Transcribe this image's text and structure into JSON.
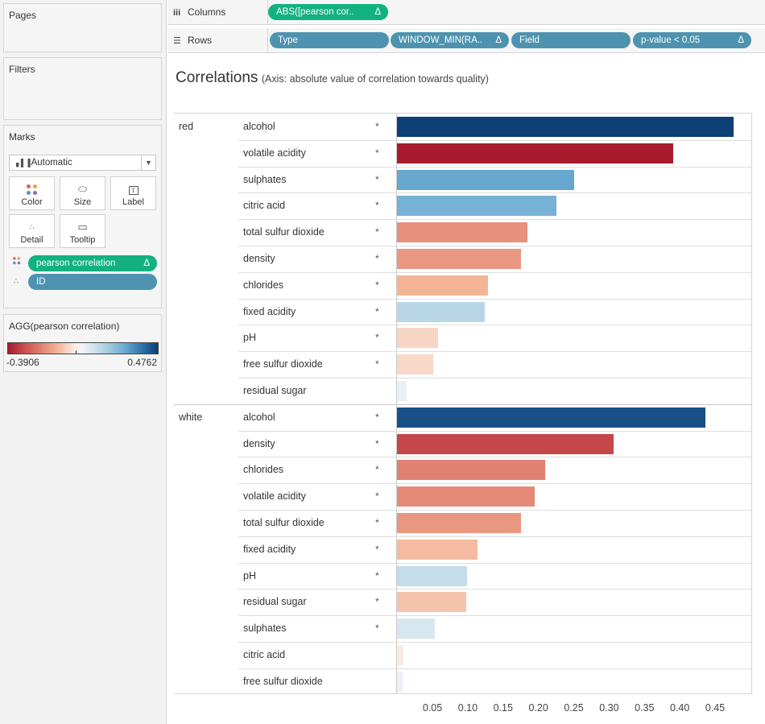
{
  "left_pane": {
    "pages_title": "Pages",
    "filters_title": "Filters",
    "marks": {
      "title": "Marks",
      "mark_type": "Automatic",
      "buttons": {
        "color": "Color",
        "size": "Size",
        "label": "Label",
        "detail": "Detail",
        "tooltip": "Tooltip"
      },
      "pills": [
        {
          "label": "pearson correlation",
          "delta": "Δ",
          "icon": "color-dots-icon"
        },
        {
          "label": "ID",
          "icon": "detail-dots-icon"
        }
      ]
    },
    "legend": {
      "title": "AGG(pearson correlation)",
      "min": "-0.3906",
      "max": "0.4762"
    }
  },
  "shelves": {
    "columns": {
      "label": "Columns",
      "pills": [
        {
          "label": "ABS([pearson cor..",
          "delta": "Δ"
        }
      ]
    },
    "rows": {
      "label": "Rows",
      "pills": [
        {
          "label": "Type",
          "delta": ""
        },
        {
          "label": "WINDOW_MIN(RA..",
          "delta": "Δ"
        },
        {
          "label": "Field",
          "delta": ""
        },
        {
          "label": "p-value < 0.05",
          "delta": "Δ"
        }
      ]
    }
  },
  "viz": {
    "title": "Correlations",
    "subtitle": "(Axis: absolute value of correlation towards quality)"
  },
  "chart_data": {
    "type": "bar",
    "orientation": "horizontal",
    "xlim": [
      0,
      0.5
    ],
    "x_ticks": [
      "0.05",
      "0.10",
      "0.15",
      "0.20",
      "0.25",
      "0.30",
      "0.35",
      "0.40",
      "0.45"
    ],
    "color_domain": [
      -0.3906,
      0.4762
    ],
    "groups": [
      {
        "name": "red",
        "rows": [
          {
            "field": "alcohol",
            "sig": "*",
            "value": 0.4762,
            "corr": 0.4762
          },
          {
            "field": "volatile acidity",
            "sig": "*",
            "value": 0.3906,
            "corr": -0.3906
          },
          {
            "field": "sulphates",
            "sig": "*",
            "value": 0.251,
            "corr": 0.251
          },
          {
            "field": "citric acid",
            "sig": "*",
            "value": 0.226,
            "corr": 0.226
          },
          {
            "field": "total sulfur dioxide",
            "sig": "*",
            "value": 0.185,
            "corr": -0.185
          },
          {
            "field": "density",
            "sig": "*",
            "value": 0.175,
            "corr": -0.175
          },
          {
            "field": "chlorides",
            "sig": "*",
            "value": 0.129,
            "corr": -0.129
          },
          {
            "field": "fixed acidity",
            "sig": "*",
            "value": 0.124,
            "corr": 0.124
          },
          {
            "field": "pH",
            "sig": "*",
            "value": 0.058,
            "corr": -0.058
          },
          {
            "field": "free sulfur dioxide",
            "sig": "*",
            "value": 0.051,
            "corr": -0.051
          },
          {
            "field": "residual sugar",
            "sig": "",
            "value": 0.014,
            "corr": 0.014
          }
        ]
      },
      {
        "name": "white",
        "rows": [
          {
            "field": "alcohol",
            "sig": "*",
            "value": 0.436,
            "corr": 0.436
          },
          {
            "field": "density",
            "sig": "*",
            "value": 0.307,
            "corr": -0.307
          },
          {
            "field": "chlorides",
            "sig": "*",
            "value": 0.21,
            "corr": -0.21
          },
          {
            "field": "volatile acidity",
            "sig": "*",
            "value": 0.195,
            "corr": -0.195
          },
          {
            "field": "total sulfur dioxide",
            "sig": "*",
            "value": 0.175,
            "corr": -0.175
          },
          {
            "field": "fixed acidity",
            "sig": "*",
            "value": 0.114,
            "corr": -0.114
          },
          {
            "field": "pH",
            "sig": "*",
            "value": 0.099,
            "corr": 0.099
          },
          {
            "field": "residual sugar",
            "sig": "*",
            "value": 0.098,
            "corr": -0.098
          },
          {
            "field": "sulphates",
            "sig": "*",
            "value": 0.054,
            "corr": 0.054
          },
          {
            "field": "citric acid",
            "sig": "",
            "value": 0.009,
            "corr": -0.009
          },
          {
            "field": "free sulfur dioxide",
            "sig": "",
            "value": 0.008,
            "corr": 0.008
          }
        ]
      }
    ]
  }
}
